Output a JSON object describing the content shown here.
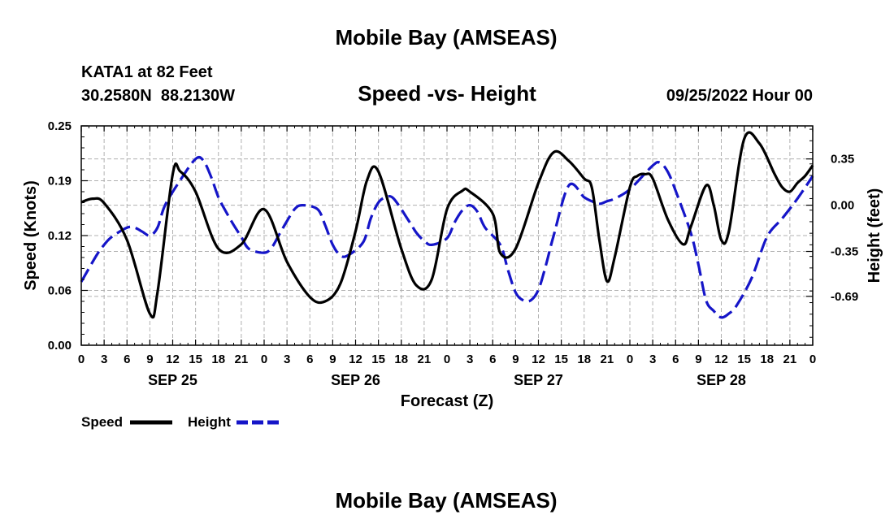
{
  "chart_data": {
    "type": "line",
    "title": "Mobile Bay (AMSEAS)",
    "repeat_title": "Mobile Bay (AMSEAS)",
    "station": "KATA1 at 82 Feet",
    "coords": "30.2580N  88.2130W",
    "subtitle": "Speed -vs- Height",
    "date": "09/25/2022 Hour 00",
    "xlabel": "Forecast (Z)",
    "ylabel": "Speed (Knots)",
    "y2label": "Height (feet)",
    "ylim": [
      0,
      0.25
    ],
    "y2lim": [
      -1.06,
      0.6
    ],
    "xlim": [
      0,
      96
    ],
    "grid": true,
    "y_ticks": [
      {
        "value": 0.0,
        "label": "0.00"
      },
      {
        "value": 0.0625,
        "label": "0.06"
      },
      {
        "value": 0.125,
        "label": "0.12"
      },
      {
        "value": 0.1875,
        "label": "0.19"
      },
      {
        "value": 0.25,
        "label": "0.25"
      }
    ],
    "y2_ticks": [
      {
        "value": 0.35,
        "label": "0.35"
      },
      {
        "value": 0.0,
        "label": "0.00"
      },
      {
        "value": -0.35,
        "label": "-0.35"
      },
      {
        "value": -0.69,
        "label": "-0.69"
      }
    ],
    "x_ticks": [
      {
        "value": 0,
        "label": "0"
      },
      {
        "value": 3,
        "label": "3"
      },
      {
        "value": 6,
        "label": "6"
      },
      {
        "value": 9,
        "label": "9"
      },
      {
        "value": 12,
        "label": "12"
      },
      {
        "value": 15,
        "label": "15"
      },
      {
        "value": 18,
        "label": "18"
      },
      {
        "value": 21,
        "label": "21"
      },
      {
        "value": 24,
        "label": "0"
      },
      {
        "value": 27,
        "label": "3"
      },
      {
        "value": 30,
        "label": "6"
      },
      {
        "value": 33,
        "label": "9"
      },
      {
        "value": 36,
        "label": "12"
      },
      {
        "value": 39,
        "label": "15"
      },
      {
        "value": 42,
        "label": "18"
      },
      {
        "value": 45,
        "label": "21"
      },
      {
        "value": 48,
        "label": "0"
      },
      {
        "value": 51,
        "label": "3"
      },
      {
        "value": 54,
        "label": "6"
      },
      {
        "value": 57,
        "label": "9"
      },
      {
        "value": 60,
        "label": "12"
      },
      {
        "value": 63,
        "label": "15"
      },
      {
        "value": 66,
        "label": "18"
      },
      {
        "value": 69,
        "label": "21"
      },
      {
        "value": 72,
        "label": "0"
      },
      {
        "value": 75,
        "label": "3"
      },
      {
        "value": 78,
        "label": "6"
      },
      {
        "value": 81,
        "label": "9"
      },
      {
        "value": 84,
        "label": "12"
      },
      {
        "value": 87,
        "label": "15"
      },
      {
        "value": 90,
        "label": "18"
      },
      {
        "value": 93,
        "label": "21"
      },
      {
        "value": 96,
        "label": "0"
      }
    ],
    "day_labels": [
      {
        "value": 12,
        "label": "SEP 25"
      },
      {
        "value": 36,
        "label": "SEP 26"
      },
      {
        "value": 60,
        "label": "SEP 27"
      },
      {
        "value": 84,
        "label": "SEP 28"
      }
    ],
    "legend": [
      {
        "name": "Speed",
        "color": "#000000",
        "dash": "solid"
      },
      {
        "name": "Height",
        "color": "#1515c8",
        "dash": "dashed"
      }
    ],
    "series": [
      {
        "name": "Speed",
        "axis": "left",
        "color": "#000000",
        "x": [
          0,
          1.5,
          3,
          6,
          9,
          10,
          12,
          13,
          15,
          18,
          21,
          24,
          27,
          30,
          32,
          34,
          36,
          37.5,
          39,
          42,
          44,
          46,
          48,
          50,
          51,
          54,
          55,
          57,
          60,
          62,
          64,
          66,
          67,
          68,
          69,
          70,
          72,
          73,
          74,
          75,
          77,
          79,
          80,
          82,
          83,
          84,
          85,
          87,
          89,
          91,
          92,
          93,
          94,
          95,
          96
        ],
        "values": [
          0.163,
          0.167,
          0.162,
          0.12,
          0.036,
          0.06,
          0.195,
          0.198,
          0.175,
          0.11,
          0.115,
          0.155,
          0.095,
          0.055,
          0.05,
          0.07,
          0.13,
          0.188,
          0.198,
          0.11,
          0.068,
          0.075,
          0.155,
          0.176,
          0.175,
          0.15,
          0.105,
          0.11,
          0.185,
          0.22,
          0.21,
          0.19,
          0.18,
          0.12,
          0.073,
          0.1,
          0.18,
          0.193,
          0.195,
          0.19,
          0.143,
          0.115,
          0.135,
          0.182,
          0.16,
          0.12,
          0.13,
          0.235,
          0.23,
          0.195,
          0.18,
          0.175,
          0.185,
          0.193,
          0.205
        ]
      },
      {
        "name": "Height",
        "axis": "right",
        "color": "#1515c8",
        "x": [
          0,
          2,
          3,
          4,
          6,
          7,
          8,
          9,
          10,
          11,
          13,
          15,
          16,
          17,
          18,
          19,
          20,
          21,
          22,
          24,
          25,
          26,
          27,
          28,
          29,
          31,
          32,
          33,
          34,
          35,
          37,
          38,
          39,
          40,
          41,
          43,
          44,
          45,
          46,
          48,
          49,
          50,
          51,
          52,
          53,
          55,
          56,
          57,
          58,
          59,
          60,
          61,
          62,
          64,
          66,
          67,
          68,
          69,
          70,
          72,
          75,
          76,
          77,
          78,
          80,
          81,
          82,
          83,
          84,
          85,
          86,
          88,
          90,
          92,
          94,
          96
        ],
        "values": [
          -0.58,
          -0.38,
          -0.3,
          -0.24,
          -0.17,
          -0.17,
          -0.2,
          -0.23,
          -0.17,
          0.0,
          0.19,
          0.35,
          0.34,
          0.22,
          0.06,
          -0.05,
          -0.15,
          -0.24,
          -0.33,
          -0.36,
          -0.32,
          -0.22,
          -0.12,
          -0.03,
          0.0,
          -0.03,
          -0.15,
          -0.3,
          -0.38,
          -0.38,
          -0.28,
          -0.1,
          0.02,
          0.06,
          0.05,
          -0.12,
          -0.21,
          -0.27,
          -0.3,
          -0.25,
          -0.13,
          -0.04,
          0.0,
          -0.05,
          -0.17,
          -0.3,
          -0.49,
          -0.66,
          -0.72,
          -0.72,
          -0.64,
          -0.45,
          -0.23,
          0.15,
          0.06,
          0.03,
          0.01,
          0.03,
          0.05,
          0.12,
          0.3,
          0.32,
          0.25,
          0.11,
          -0.21,
          -0.45,
          -0.72,
          -0.8,
          -0.85,
          -0.82,
          -0.76,
          -0.55,
          -0.24,
          -0.1,
          0.05,
          0.22
        ]
      }
    ]
  }
}
